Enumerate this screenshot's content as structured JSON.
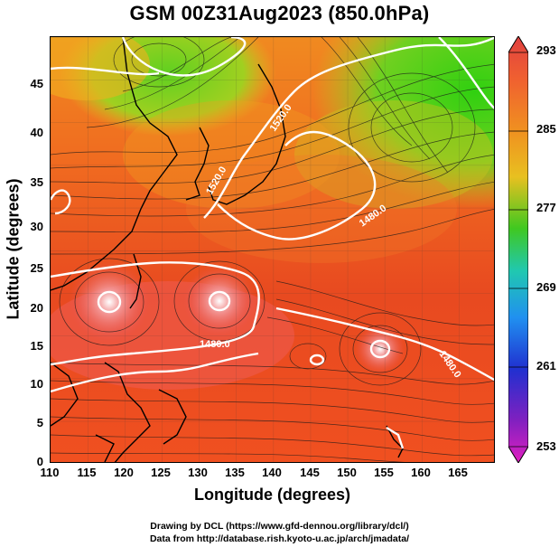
{
  "title": "GSM 00Z31Aug2023 (850.0hPa)",
  "xlabel": "Longitude (degrees)",
  "ylabel": "Latitude (degrees)",
  "x_ticks": [
    "110",
    "115",
    "120",
    "125",
    "130",
    "135",
    "140",
    "145",
    "150",
    "155",
    "160",
    "165"
  ],
  "y_ticks": [
    "0",
    "5",
    "10",
    "15",
    "20",
    "25",
    "30",
    "35",
    "40",
    "45"
  ],
  "colorbar": {
    "ticks": [
      "293",
      "285",
      "277",
      "269",
      "261",
      "253"
    ],
    "colors": [
      "#e85050",
      "#f08030",
      "#f0c020",
      "#40c020",
      "#20c0c0",
      "#2060f0",
      "#3020c0",
      "#e020c0"
    ]
  },
  "contour_labels": [
    "1520.0",
    "1520.0",
    "1480.0",
    "1480.0",
    "1480.0"
  ],
  "credits": {
    "line1": "Drawing by DCL (https://www.gfd-dennou.org/library/dcl/)",
    "line2": "Data from http://database.rish.kyoto-u.ac.jp/arch/jmadata/"
  },
  "map_data": {
    "lon_range": [
      110,
      170
    ],
    "lat_range": [
      0,
      50
    ],
    "field": "850hPa temperature (K) with streamlines and geopotential height contours"
  }
}
